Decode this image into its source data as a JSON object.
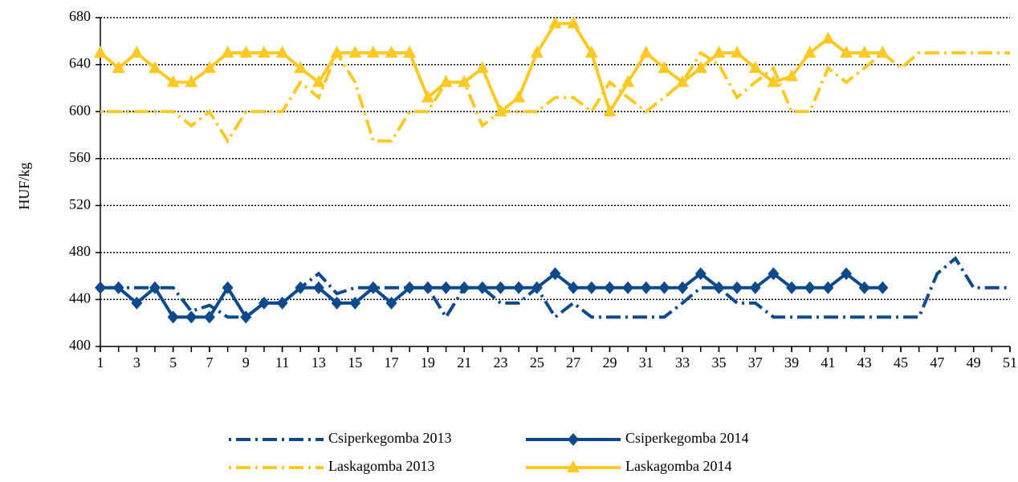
{
  "chart_data": {
    "type": "line",
    "y_label": "HUF/kg",
    "x": [
      1,
      2,
      3,
      4,
      5,
      6,
      7,
      8,
      9,
      10,
      11,
      12,
      13,
      14,
      15,
      16,
      17,
      18,
      19,
      20,
      21,
      22,
      23,
      24,
      25,
      26,
      27,
      28,
      29,
      30,
      31,
      32,
      33,
      34,
      35,
      36,
      37,
      38,
      39,
      40,
      41,
      42,
      43,
      44,
      45,
      46,
      47,
      48,
      49,
      50,
      51
    ],
    "xlim": [
      1,
      51
    ],
    "xticks": [
      1,
      3,
      5,
      7,
      9,
      11,
      13,
      15,
      17,
      19,
      21,
      23,
      25,
      27,
      29,
      31,
      33,
      35,
      37,
      39,
      41,
      43,
      45,
      47,
      49,
      51
    ],
    "ylim": [
      400,
      680
    ],
    "yticks": [
      400,
      440,
      480,
      520,
      560,
      600,
      640,
      680
    ],
    "grid": true,
    "legend": "bottom",
    "series": [
      {
        "name": "Csiperkegomba 2013",
        "color": "#0d4a8c",
        "line_style": "dash-dot",
        "marker": "none",
        "values": [
          450,
          450,
          450,
          450,
          450,
          430,
          435,
          425,
          425,
          437,
          437,
          450,
          462,
          445,
          450,
          450,
          450,
          450,
          450,
          425,
          450,
          450,
          437,
          437,
          450,
          425,
          437,
          425,
          425,
          425,
          425,
          425,
          437,
          450,
          450,
          437,
          437,
          425,
          425,
          425,
          425,
          425,
          425,
          425,
          425,
          425,
          462,
          475,
          450,
          450,
          450
        ]
      },
      {
        "name": "Csiperkegomba 2014",
        "color": "#0d4a8c",
        "line_style": "solid",
        "marker": "diamond",
        "values": [
          450,
          450,
          437,
          450,
          425,
          425,
          425,
          450,
          425,
          437,
          437,
          450,
          450,
          437,
          437,
          450,
          437,
          450,
          450,
          450,
          450,
          450,
          450,
          450,
          450,
          462,
          450,
          450,
          450,
          450,
          450,
          450,
          450,
          462,
          450,
          450,
          450,
          462,
          450,
          450,
          450,
          462,
          450,
          450,
          null,
          null,
          null,
          null,
          null,
          null,
          null
        ]
      },
      {
        "name": "Laskagomba 2013",
        "color": "#ffc925",
        "line_style": "dash-dot",
        "marker": "none",
        "values": [
          600,
          600,
          600,
          600,
          600,
          588,
          600,
          575,
          600,
          600,
          600,
          625,
          612,
          650,
          625,
          575,
          575,
          600,
          600,
          625,
          625,
          588,
          600,
          600,
          600,
          612,
          612,
          600,
          625,
          612,
          600,
          612,
          625,
          650,
          640,
          612,
          625,
          637,
          600,
          600,
          637,
          625,
          637,
          650,
          637,
          650,
          650,
          650,
          650,
          650,
          650
        ]
      },
      {
        "name": "Laskagomba 2014",
        "color": "#ffc925",
        "line_style": "solid",
        "marker": "triangle",
        "values": [
          650,
          637,
          650,
          637,
          625,
          625,
          637,
          650,
          650,
          650,
          650,
          637,
          625,
          650,
          650,
          650,
          650,
          650,
          612,
          625,
          625,
          637,
          600,
          612,
          650,
          675,
          675,
          650,
          600,
          625,
          650,
          637,
          625,
          637,
          650,
          650,
          637,
          625,
          630,
          650,
          662,
          650,
          650,
          650,
          null,
          null,
          null,
          null,
          null,
          null,
          null
        ]
      }
    ]
  }
}
